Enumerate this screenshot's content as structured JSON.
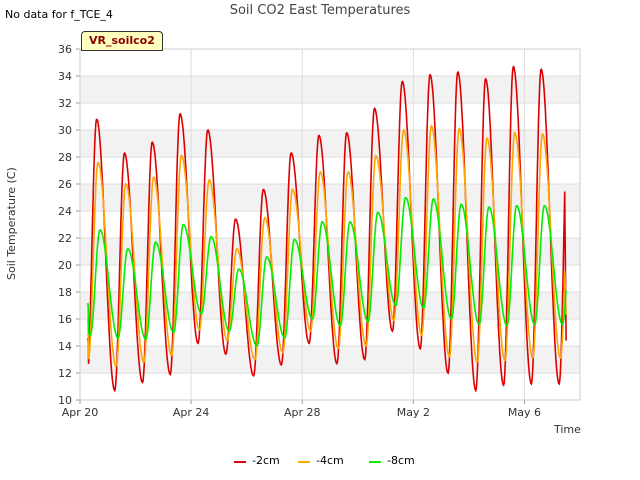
{
  "header": {
    "no_data_text": "No data for f_TCE_4",
    "badge_label": "VR_soilco2"
  },
  "chart_data": {
    "type": "line",
    "title": "Soil CO2 East Temperatures",
    "xlabel": "Time",
    "ylabel": "Soil Temperature (C)",
    "x_tick_labels": [
      "Apr 20",
      "Apr 24",
      "Apr 28",
      "May 2",
      "May 6"
    ],
    "x_tick_days": [
      0,
      4,
      8,
      12,
      16
    ],
    "xlim_days": [
      0,
      18
    ],
    "ylim": [
      10,
      36
    ],
    "y_ticks": [
      10,
      12,
      14,
      16,
      18,
      20,
      22,
      24,
      26,
      28,
      30,
      32,
      34,
      36
    ],
    "grid": true,
    "legend_position": "bottom",
    "series": [
      {
        "name": "-2cm",
        "color": "#dd0000",
        "daily_max": [
          30.8,
          28.3,
          29.1,
          31.2,
          30.0,
          23.4,
          25.6,
          28.3,
          29.6,
          29.8,
          31.6,
          33.6,
          34.1,
          34.3,
          33.8,
          34.7,
          34.5
        ],
        "daily_min": [
          11.3,
          10.7,
          11.3,
          11.9,
          14.2,
          13.4,
          11.8,
          12.6,
          14.2,
          12.7,
          13.0,
          15.1,
          13.8,
          12.0,
          10.7,
          11.1,
          11.2
        ],
        "start": 14.5,
        "end": 14.4
      },
      {
        "name": "-4cm",
        "color": "#ffa500",
        "daily_max": [
          27.6,
          26.0,
          26.5,
          28.1,
          26.3,
          21.2,
          23.5,
          25.6,
          26.9,
          26.9,
          28.1,
          30.0,
          30.3,
          30.1,
          29.4,
          29.8,
          29.7
        ],
        "daily_min": [
          13.0,
          12.5,
          12.8,
          13.3,
          15.2,
          14.4,
          13.0,
          13.5,
          15.1,
          13.8,
          14.0,
          15.9,
          14.8,
          13.2,
          12.8,
          12.9,
          13.1
        ],
        "start": 15.8,
        "end": 16.3
      },
      {
        "name": "-8cm",
        "color": "#00ee00",
        "daily_max": [
          22.6,
          21.2,
          21.7,
          23.0,
          22.1,
          19.7,
          20.6,
          21.9,
          23.2,
          23.2,
          23.9,
          25.0,
          24.9,
          24.5,
          24.3,
          24.4,
          24.4
        ],
        "daily_min": [
          14.8,
          14.6,
          14.5,
          15.0,
          16.4,
          15.1,
          14.0,
          14.6,
          16.0,
          15.5,
          15.8,
          17.0,
          16.8,
          16.0,
          15.6,
          15.5,
          15.6
        ],
        "start": 17.1,
        "end": 18.1
      }
    ]
  }
}
